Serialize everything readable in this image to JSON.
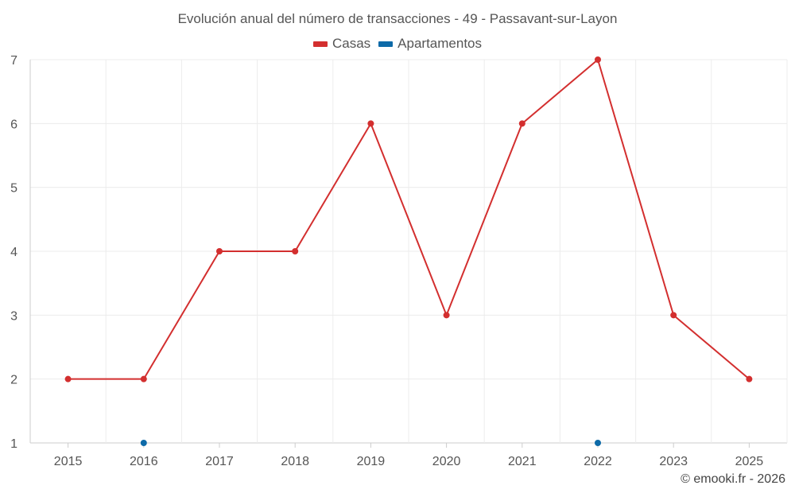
{
  "chart_data": {
    "type": "line",
    "title": "Evolución anual del número de transacciones - 49 - Passavant-sur-Layon",
    "categories": [
      "2015",
      "2016",
      "2017",
      "2018",
      "2019",
      "2020",
      "2021",
      "2022",
      "2023",
      "2025"
    ],
    "series": [
      {
        "name": "Casas",
        "color": "#d32f2f",
        "values": [
          2,
          2,
          4,
          4,
          6,
          3,
          6,
          7,
          3,
          2
        ]
      },
      {
        "name": "Apartamentos",
        "color": "#0d6aa8",
        "values": [
          null,
          1,
          null,
          null,
          null,
          null,
          null,
          1,
          null,
          null
        ]
      }
    ],
    "yticks": [
      1,
      2,
      3,
      4,
      5,
      6,
      7
    ],
    "ylim": [
      1,
      7
    ],
    "xlabel": "",
    "ylabel": "",
    "grid": true,
    "legend_position": "top-center"
  },
  "credit": "© emooki.fr - 2026"
}
